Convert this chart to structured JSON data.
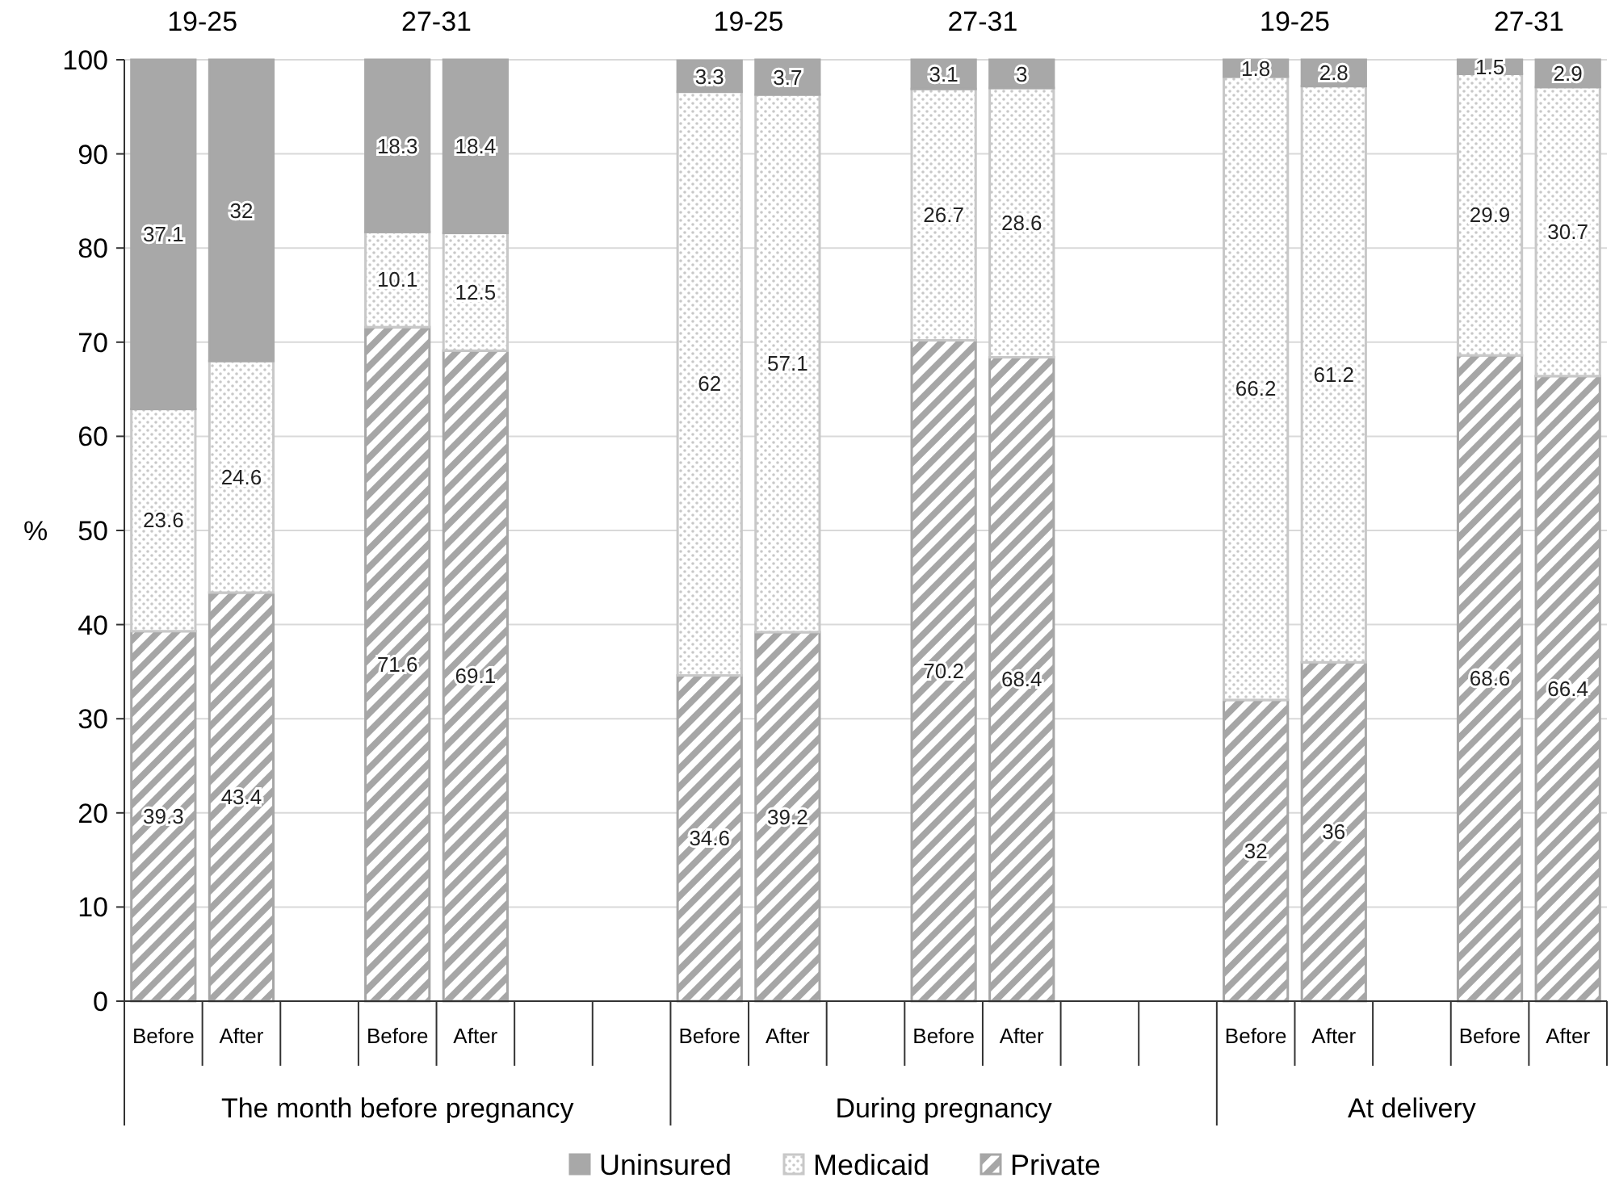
{
  "chart_data": {
    "type": "bar",
    "stacked": true,
    "ylabel": "%",
    "ylim": [
      0,
      100
    ],
    "yticks": [
      0,
      10,
      20,
      30,
      40,
      50,
      60,
      70,
      80,
      90,
      100
    ],
    "grid": "y",
    "legend": "bottom",
    "data_labels": true,
    "categories": [
      "Before",
      "After",
      null,
      "Before",
      "After",
      null,
      null,
      "Before",
      "After",
      null,
      "Before",
      "After",
      null,
      null,
      "Before",
      "After",
      null,
      "Before",
      "After"
    ],
    "series": [
      {
        "name": "Private",
        "color": "#a6a6a6",
        "values": [
          39.3,
          43.4,
          null,
          71.6,
          69.1,
          null,
          null,
          34.6,
          39.2,
          null,
          70.2,
          68.4,
          null,
          null,
          32,
          36,
          null,
          68.6,
          66.4
        ]
      },
      {
        "name": "Medicaid",
        "color": "#c8c8c8",
        "values": [
          23.6,
          24.6,
          null,
          10.1,
          12.5,
          null,
          null,
          62,
          57.1,
          null,
          26.7,
          28.6,
          null,
          null,
          66.2,
          61.2,
          null,
          29.9,
          30.7
        ]
      },
      {
        "name": "Uninsured",
        "color": "#a8a8a8",
        "values": [
          37.1,
          32,
          null,
          18.3,
          18.4,
          null,
          null,
          3.3,
          3.7,
          null,
          3.1,
          3,
          null,
          null,
          1.8,
          2.8,
          null,
          1.5,
          2.9
        ]
      }
    ],
    "annotations": [
      "19-25",
      "27-31",
      "19-25",
      "27-31",
      "19-25",
      "27-31",
      "The month before pregnancy",
      "During pregnancy",
      "At delivery"
    ]
  }
}
